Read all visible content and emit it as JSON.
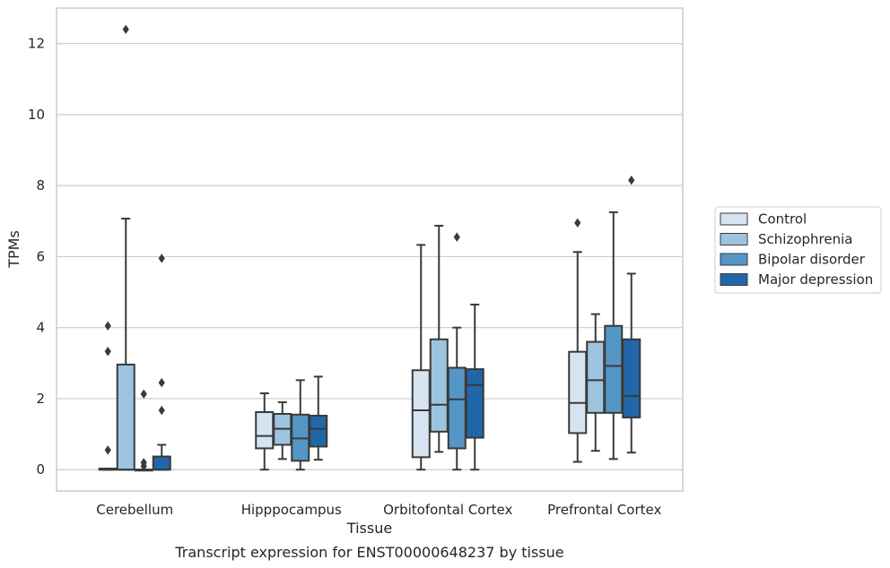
{
  "chart_data": {
    "type": "box",
    "title": "",
    "caption": "Transcript expression for ENST00000648237 by tissue",
    "xlabel": "Tissue",
    "ylabel": "TPMs",
    "ylim": [
      -0.6,
      13.0
    ],
    "yticks": [
      0,
      2,
      4,
      6,
      8,
      10,
      12
    ],
    "grid": true,
    "legend_position": "right",
    "categories": [
      "Cerebellum",
      "Hipppocampus",
      "Orbitofontal Cortex",
      "Prefrontal Cortex"
    ],
    "series": [
      {
        "name": "Control",
        "color": "#d6e4f2",
        "boxes": [
          {
            "whisker_low": 0,
            "q1": 0,
            "median": 0,
            "q3": 0.03,
            "whisker_high": 0.03,
            "outliers": [
              0.55,
              3.33,
              4.05
            ]
          },
          {
            "whisker_low": 0,
            "q1": 0.6,
            "median": 0.95,
            "q3": 1.62,
            "whisker_high": 2.15,
            "outliers": []
          },
          {
            "whisker_low": 0,
            "q1": 0.35,
            "median": 1.67,
            "q3": 2.8,
            "whisker_high": 6.33,
            "outliers": []
          },
          {
            "whisker_low": 0.22,
            "q1": 1.03,
            "median": 1.88,
            "q3": 3.32,
            "whisker_high": 6.13,
            "outliers": [
              6.95
            ]
          }
        ]
      },
      {
        "name": "Schizophrenia",
        "color": "#9dc4df",
        "boxes": [
          {
            "whisker_low": 0,
            "q1": 0,
            "median": 0,
            "q3": 2.96,
            "whisker_high": 7.07,
            "outliers": [
              12.4
            ]
          },
          {
            "whisker_low": 0.3,
            "q1": 0.7,
            "median": 1.15,
            "q3": 1.57,
            "whisker_high": 1.9,
            "outliers": []
          },
          {
            "whisker_low": 0.5,
            "q1": 1.07,
            "median": 1.83,
            "q3": 3.67,
            "whisker_high": 6.87,
            "outliers": []
          },
          {
            "whisker_low": 0.53,
            "q1": 1.6,
            "median": 2.52,
            "q3": 3.6,
            "whisker_high": 4.38,
            "outliers": []
          }
        ]
      },
      {
        "name": "Bipolar disorder",
        "color": "#5496c5",
        "boxes": [
          {
            "whisker_low": 0,
            "q1": 0,
            "median": 0,
            "q3": 0,
            "whisker_high": 0,
            "outliers": [
              0.1,
              0.2,
              2.13
            ]
          },
          {
            "whisker_low": 0,
            "q1": 0.25,
            "median": 0.88,
            "q3": 1.55,
            "whisker_high": 2.52,
            "outliers": []
          },
          {
            "whisker_low": 0,
            "q1": 0.6,
            "median": 1.98,
            "q3": 2.87,
            "whisker_high": 4.0,
            "outliers": [
              6.55
            ]
          },
          {
            "whisker_low": 0.3,
            "q1": 1.6,
            "median": 2.92,
            "q3": 4.05,
            "whisker_high": 7.25,
            "outliers": []
          }
        ]
      },
      {
        "name": "Major depression",
        "color": "#2166a8",
        "boxes": [
          {
            "whisker_low": 0,
            "q1": 0,
            "median": 0,
            "q3": 0.37,
            "whisker_high": 0.7,
            "outliers": [
              1.67,
              2.45,
              5.95
            ]
          },
          {
            "whisker_low": 0.28,
            "q1": 0.65,
            "median": 1.15,
            "q3": 1.52,
            "whisker_high": 2.62,
            "outliers": []
          },
          {
            "whisker_low": 0,
            "q1": 0.9,
            "median": 2.38,
            "q3": 2.83,
            "whisker_high": 4.65,
            "outliers": []
          },
          {
            "whisker_low": 0.48,
            "q1": 1.47,
            "median": 2.07,
            "q3": 3.67,
            "whisker_high": 5.52,
            "outliers": [
              8.15
            ]
          }
        ]
      }
    ]
  }
}
